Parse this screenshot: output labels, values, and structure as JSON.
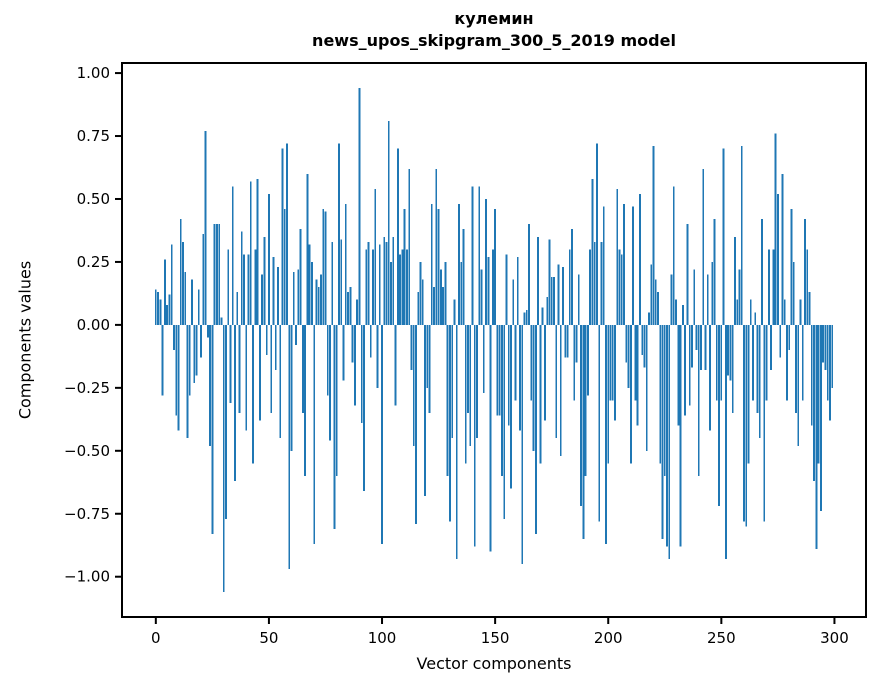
{
  "figure": {
    "title_line1": "кулемин",
    "title_line2": "news_upos_skipgram_300_5_2019 model"
  },
  "chart_data": {
    "type": "bar",
    "title": "кулемин\nnews_upos_skipgram_300_5_2019 model",
    "xlabel": "Vector components",
    "ylabel": "Components values",
    "legend": null,
    "grid": false,
    "bar_color": "#1f77b4",
    "axis_color": "#000000",
    "bar_width_data_units": 0.8,
    "xlim": [
      -14.95,
      313.95
    ],
    "ylim": [
      -1.16,
      1.04
    ],
    "xticks": [
      {
        "v": 0,
        "label": "0"
      },
      {
        "v": 50,
        "label": "50"
      },
      {
        "v": 100,
        "label": "100"
      },
      {
        "v": 150,
        "label": "150"
      },
      {
        "v": 200,
        "label": "200"
      },
      {
        "v": 250,
        "label": "250"
      },
      {
        "v": 300,
        "label": "300"
      }
    ],
    "yticks": [
      {
        "v": 1.0,
        "label": "1.00"
      },
      {
        "v": 0.75,
        "label": "0.75"
      },
      {
        "v": 0.5,
        "label": "0.50"
      },
      {
        "v": 0.25,
        "label": "0.25"
      },
      {
        "v": 0.0,
        "label": "0.00"
      },
      {
        "v": -0.25,
        "label": "−0.25"
      },
      {
        "v": -0.5,
        "label": "−0.50"
      },
      {
        "v": -0.75,
        "label": "−0.75"
      },
      {
        "v": -1.0,
        "label": "−1.00"
      }
    ],
    "x_start": 0,
    "values": [
      0.14,
      0.13,
      0.1,
      -0.28,
      0.26,
      0.08,
      0.12,
      0.32,
      -0.1,
      -0.36,
      -0.42,
      0.42,
      0.33,
      0.21,
      -0.45,
      -0.28,
      0.18,
      -0.23,
      -0.2,
      0.14,
      -0.13,
      0.36,
      0.77,
      -0.05,
      -0.48,
      -0.83,
      0.4,
      0.4,
      0.4,
      0.03,
      -1.06,
      -0.77,
      0.3,
      -0.31,
      0.55,
      -0.62,
      0.13,
      -0.35,
      0.37,
      0.28,
      -0.42,
      0.28,
      0.57,
      -0.55,
      0.3,
      0.58,
      -0.38,
      0.2,
      0.35,
      -0.12,
      0.52,
      -0.35,
      0.27,
      -0.18,
      0.23,
      -0.45,
      0.7,
      0.46,
      0.72,
      -0.97,
      -0.5,
      0.21,
      -0.08,
      0.22,
      0.38,
      -0.35,
      -0.6,
      0.6,
      0.32,
      0.25,
      -0.87,
      0.18,
      0.15,
      0.2,
      0.46,
      0.45,
      -0.28,
      -0.46,
      0.33,
      -0.81,
      -0.6,
      0.72,
      0.34,
      -0.22,
      0.48,
      0.13,
      0.15,
      -0.15,
      -0.32,
      0.1,
      0.94,
      -0.39,
      -0.66,
      0.3,
      0.33,
      -0.13,
      0.3,
      0.54,
      -0.25,
      0.32,
      -0.87,
      0.35,
      0.33,
      0.81,
      0.25,
      0.35,
      -0.32,
      0.7,
      0.28,
      0.3,
      0.46,
      0.3,
      0.62,
      -0.18,
      -0.48,
      -0.79,
      0.13,
      0.25,
      0.18,
      -0.68,
      -0.25,
      -0.35,
      0.48,
      0.15,
      0.62,
      0.46,
      0.22,
      0.15,
      0.25,
      -0.6,
      -0.78,
      -0.45,
      0.1,
      -0.93,
      0.48,
      0.25,
      0.38,
      -0.55,
      -0.35,
      -0.48,
      0.55,
      -0.88,
      -0.45,
      0.55,
      0.22,
      -0.27,
      0.5,
      0.27,
      -0.9,
      0.3,
      0.46,
      -0.36,
      -0.36,
      -0.6,
      -0.77,
      0.28,
      -0.4,
      -0.65,
      0.18,
      -0.3,
      0.27,
      -0.42,
      -0.95,
      0.05,
      0.06,
      0.4,
      -0.3,
      -0.5,
      -0.83,
      0.35,
      -0.55,
      0.07,
      -0.38,
      0.11,
      0.34,
      0.19,
      0.19,
      -0.45,
      0.24,
      -0.52,
      0.23,
      -0.13,
      -0.13,
      0.3,
      0.38,
      -0.3,
      -0.15,
      0.2,
      -0.72,
      -0.85,
      -0.6,
      -0.28,
      0.3,
      0.58,
      0.33,
      0.72,
      -0.78,
      0.33,
      0.47,
      -0.87,
      -0.55,
      -0.3,
      -0.3,
      -0.38,
      0.54,
      0.3,
      0.28,
      0.48,
      -0.15,
      -0.25,
      -0.55,
      0.47,
      -0.3,
      -0.4,
      0.52,
      -0.12,
      -0.17,
      -0.5,
      0.05,
      0.24,
      0.71,
      0.18,
      0.13,
      -0.55,
      -0.85,
      -0.6,
      -0.88,
      -0.93,
      0.2,
      0.55,
      0.1,
      -0.4,
      -0.88,
      0.08,
      -0.36,
      0.4,
      -0.32,
      -0.17,
      0.22,
      -0.1,
      -0.6,
      -0.18,
      0.62,
      -0.18,
      0.2,
      -0.42,
      0.25,
      0.42,
      -0.3,
      -0.72,
      -0.3,
      0.7,
      -0.93,
      -0.2,
      -0.22,
      -0.35,
      0.35,
      0.1,
      0.22,
      0.71,
      -0.78,
      -0.8,
      -0.55,
      0.1,
      -0.3,
      0.05,
      -0.35,
      -0.45,
      0.42,
      -0.78,
      -0.3,
      0.3,
      -0.18,
      0.3,
      0.76,
      0.52,
      -0.13,
      0.6,
      0.1,
      -0.3,
      -0.1,
      0.46,
      0.25,
      -0.35,
      -0.48,
      0.1,
      -0.3,
      0.42,
      0.3,
      0.13,
      -0.4,
      -0.62,
      -0.89,
      -0.55,
      -0.74,
      -0.15,
      -0.18,
      -0.3,
      -0.38,
      -0.25
    ]
  }
}
